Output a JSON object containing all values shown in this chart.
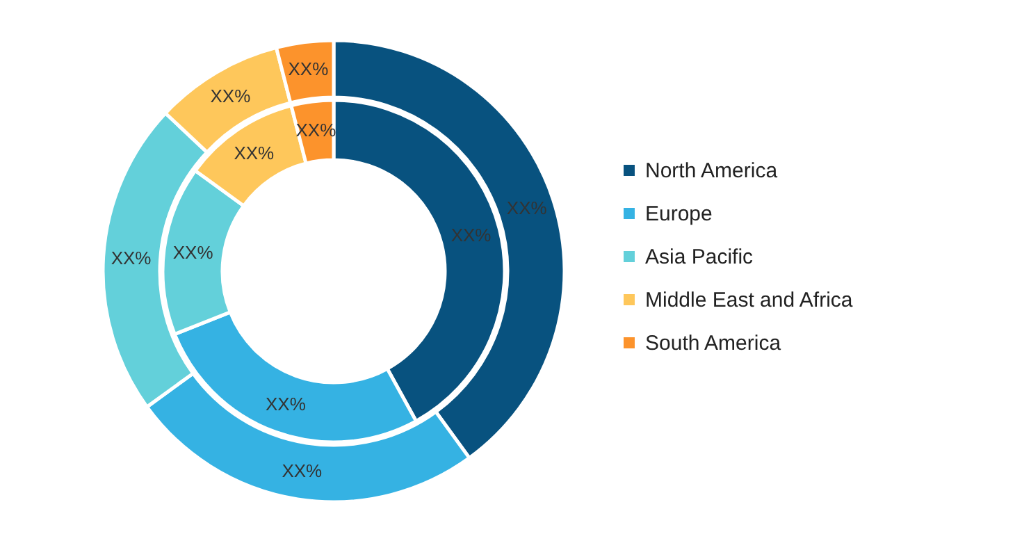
{
  "chart_data": {
    "type": "donut",
    "categories": [
      "North America",
      "Europe",
      "Asia Pacific",
      "Middle East and Africa",
      "South America"
    ],
    "colors": [
      "#08527f",
      "#35b2e3",
      "#63d0da",
      "#fec75b",
      "#fc932c"
    ],
    "series": [
      {
        "values": [
          40,
          25,
          22,
          9,
          4
        ],
        "value_labels": [
          "XX%",
          "XX%",
          "XX%",
          "XX%",
          "XX%"
        ]
      },
      {
        "values": [
          42,
          27,
          16,
          11,
          4
        ],
        "value_labels": [
          "XX%",
          "XX%",
          "XX%",
          "XX%",
          "XX%"
        ]
      }
    ],
    "legend": "right"
  }
}
